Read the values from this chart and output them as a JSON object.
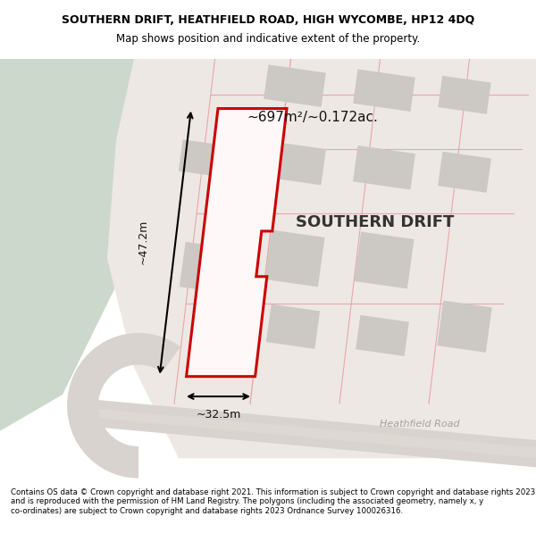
{
  "title": "SOUTHERN DRIFT, HEATHFIELD ROAD, HIGH WYCOMBE, HP12 4DQ",
  "subtitle": "Map shows position and indicative extent of the property.",
  "footer": "Contains OS data © Crown copyright and database right 2021. This information is subject to Crown copyright and database rights 2023 and is reproduced with the permission of HM Land Registry. The polygons (including the associated geometry, namely x, y co-ordinates) are subject to Crown copyright and database rights 2023 Ordnance Survey 100026316.",
  "property_label": "SOUTHERN DRIFT",
  "area_label": "~697m²/~0.172ac.",
  "width_label": "~32.5m",
  "height_label": "~47.2m",
  "road_label": "Heathfield Road",
  "green_color": "#cdd8cc",
  "land_color": "#ede8e4",
  "road_color": "#d8d3ce",
  "building_color": "#ccc8c4",
  "outline_color": "#e8a8a8",
  "highlight_color": "#cc0000",
  "fig_bg": "#ffffff",
  "title_fontsize": 9.0,
  "subtitle_fontsize": 8.5,
  "footer_fontsize": 6.2
}
